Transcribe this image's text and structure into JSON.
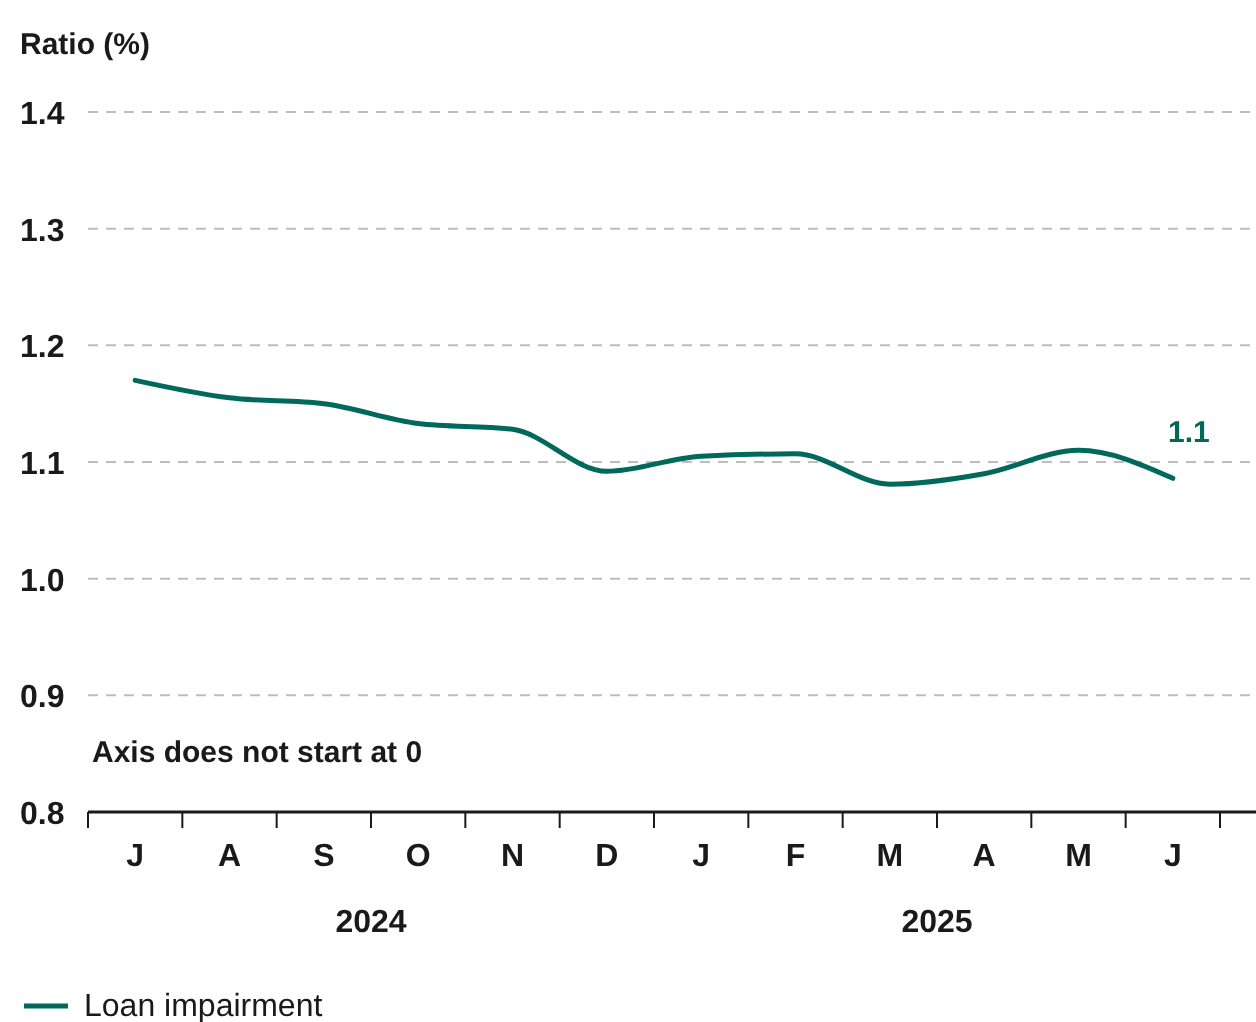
{
  "chart_data": {
    "type": "line",
    "ylabel": "Ratio (%)",
    "categories": [
      "J",
      "A",
      "S",
      "O",
      "N",
      "D",
      "J",
      "F",
      "M",
      "A",
      "M",
      "J"
    ],
    "series": [
      {
        "name": "Loan impairment",
        "color": "#00695c",
        "values": [
          1.17,
          1.155,
          1.15,
          1.133,
          1.128,
          1.092,
          1.105,
          1.107,
          1.081,
          1.09,
          1.11,
          1.086
        ],
        "value_labels": [
          null,
          null,
          null,
          null,
          null,
          null,
          null,
          null,
          null,
          null,
          null,
          "1.1"
        ]
      }
    ],
    "ylim": [
      0.8,
      1.4
    ],
    "yticks": [
      0.8,
      0.9,
      {
        "value": 1,
        "label": "1.0"
      },
      1.1,
      1.2,
      1.3,
      1.4
    ],
    "grid": "y",
    "legend": "bottom left",
    "marker": "none",
    "line_style": "solid",
    "annotations": [
      "Axis does not start at 0",
      "2024",
      "2025"
    ]
  }
}
